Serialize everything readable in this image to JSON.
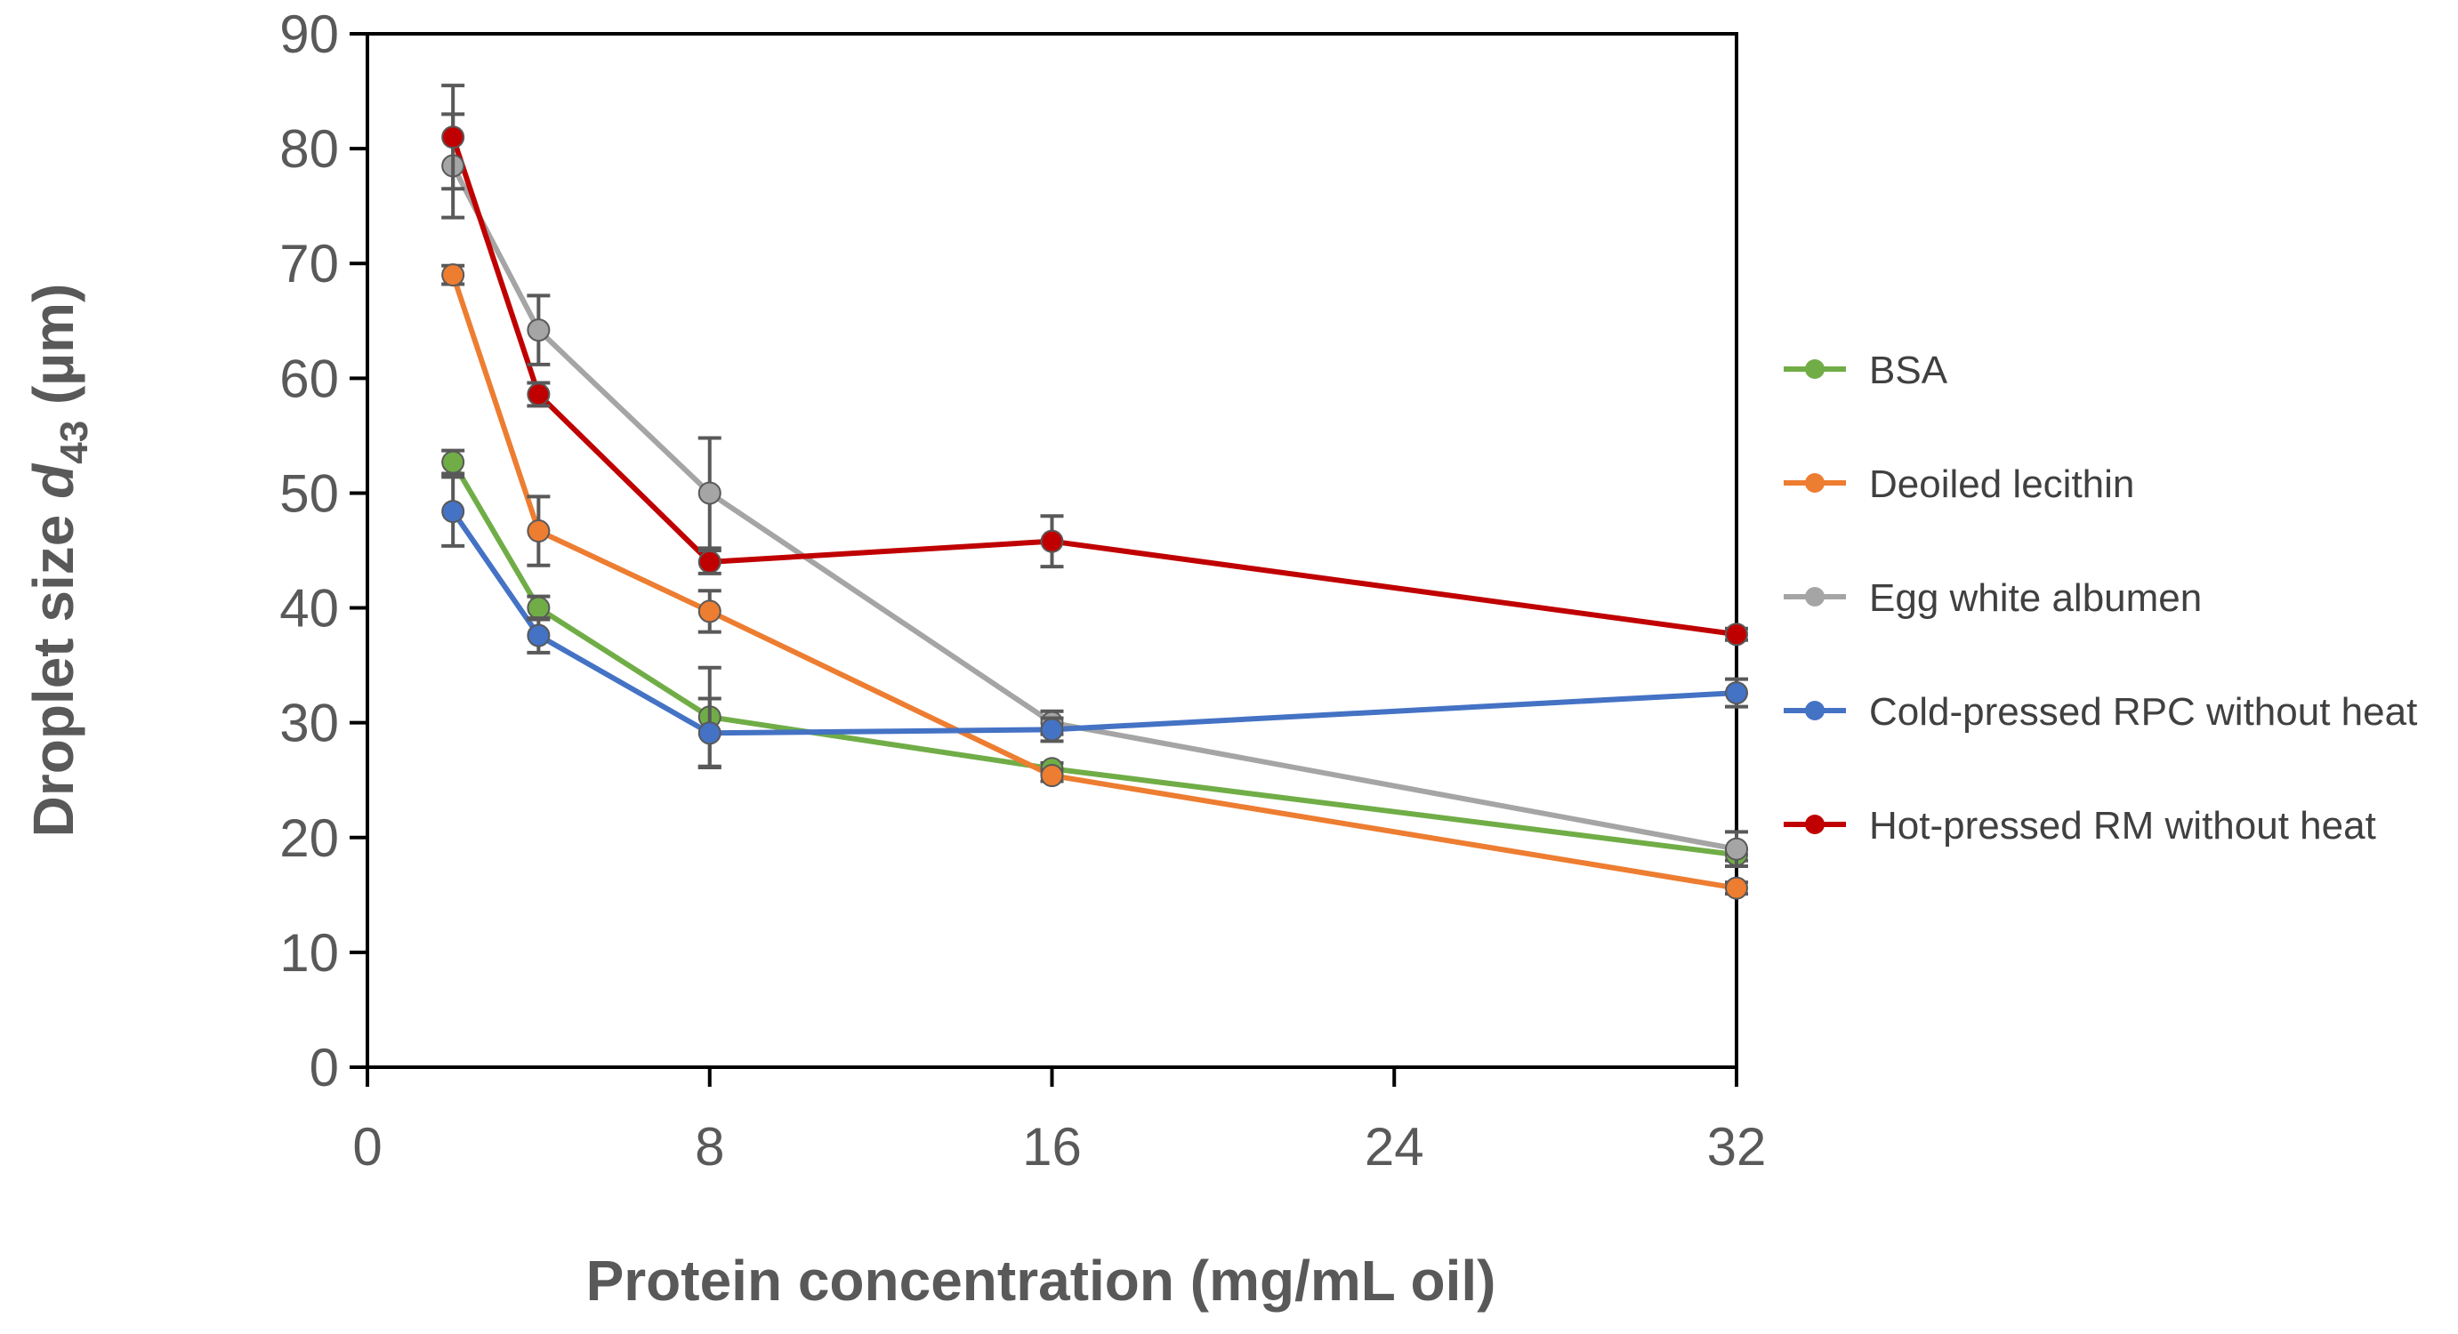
{
  "chart_data": {
    "type": "line",
    "xlabel": "Protein concentration (mg/mL oil)",
    "ylabel_prefix": "Droplet size ",
    "ylabel_symbol": "d",
    "ylabel_subscript": "43",
    "ylabel_suffix": " (µm)",
    "xlim": [
      0,
      32
    ],
    "ylim": [
      0,
      90
    ],
    "xticks": [
      0,
      8,
      16,
      24,
      32
    ],
    "yticks": [
      0,
      10,
      20,
      30,
      40,
      50,
      60,
      70,
      80,
      90
    ],
    "grid": false,
    "legend_position": "right",
    "x": [
      2,
      4,
      8,
      16,
      32
    ],
    "series": [
      {
        "name": "BSA",
        "color": "#70AD47",
        "values": [
          52.7,
          40.0,
          30.5,
          26.0,
          18.5
        ],
        "errors": [
          1.0,
          1.0,
          4.3,
          0.5,
          0.5
        ]
      },
      {
        "name": "Deoiled lecithin",
        "color": "#ED7D31",
        "values": [
          69.0,
          46.7,
          39.7,
          25.4,
          15.6
        ],
        "errors": [
          0.8,
          3.0,
          1.8,
          0.5,
          0.5
        ]
      },
      {
        "name": "Egg white albumen",
        "color": "#A5A5A5",
        "values": [
          78.5,
          64.2,
          50.0,
          30.0,
          19.0
        ],
        "errors": [
          4.5,
          3.0,
          4.8,
          1.0,
          1.5
        ]
      },
      {
        "name": "Cold-pressed RPC without heat",
        "color": "#4472C4",
        "values": [
          48.4,
          37.6,
          29.1,
          29.4,
          32.6
        ],
        "errors": [
          3.0,
          1.5,
          3.0,
          1.0,
          1.2
        ]
      },
      {
        "name": "Hot-pressed RM without heat",
        "color": "#C00000",
        "values": [
          81.0,
          58.6,
          44.0,
          45.8,
          37.7
        ],
        "errors": [
          4.5,
          1.0,
          1.0,
          2.2,
          0.5
        ]
      }
    ]
  }
}
